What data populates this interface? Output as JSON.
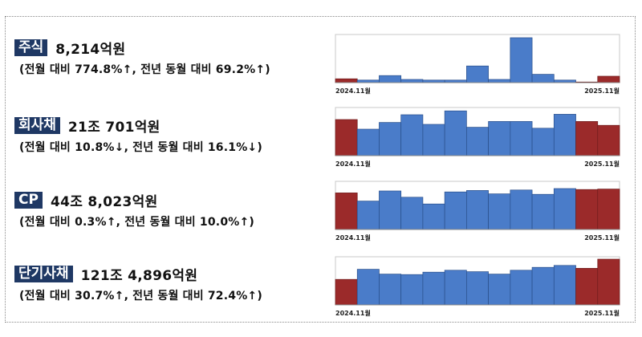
{
  "colors": {
    "badge_bg": "#1f3864",
    "bar_blue": "#4a7cc9",
    "bar_red": "#9b2a2a",
    "bar_stroke": "#2a4f8a",
    "axis": "#888888"
  },
  "rows": [
    {
      "name": "주식",
      "amount": "8,214억원",
      "change": "(전월 대비 774.8%↑, 전년 동월 대비 69.2%↑)"
    },
    {
      "name": "회사채",
      "amount": "21조 701억원",
      "change": "(전월 대비 10.8%↓, 전년 동월 대비 16.1%↓)"
    },
    {
      "name": "CP",
      "amount": "44조 8,023억원",
      "change": "(전월 대비 0.3%↑, 전년 동월 대비 10.0%↑)"
    },
    {
      "name": "단기사채",
      "amount": "121조 4,896억원",
      "change": "(전월 대비 30.7%↑, 전년 동월 대비 72.4%↑)"
    }
  ],
  "chart_data": [
    {
      "type": "bar",
      "x_start": "2024.11월",
      "x_end": "2025.11월",
      "values": [
        0.6,
        0.4,
        1.1,
        0.5,
        0.4,
        0.4,
        2.6,
        0.5,
        7.0,
        1.3,
        0.4,
        0.1,
        1.0
      ],
      "highlight": [
        0,
        11,
        12
      ],
      "ylim": [
        0,
        7.5
      ]
    },
    {
      "type": "bar",
      "x_start": "2024.11월",
      "x_end": "2025.11월",
      "values": [
        7.5,
        5.5,
        6.9,
        8.5,
        6.5,
        9.3,
        5.9,
        7.1,
        7.1,
        5.7,
        8.6,
        7.1,
        6.3
      ],
      "highlight": [
        0,
        11,
        12
      ],
      "ylim": [
        0,
        10
      ]
    },
    {
      "type": "bar",
      "x_start": "2024.11월",
      "x_end": "2025.11월",
      "values": [
        7.6,
        5.9,
        8.0,
        6.7,
        5.3,
        7.8,
        8.1,
        7.4,
        8.2,
        7.3,
        8.5,
        8.3,
        8.4
      ],
      "highlight": [
        0,
        11,
        12
      ],
      "ylim": [
        0,
        10
      ]
    },
    {
      "type": "bar",
      "x_start": "2024.11월",
      "x_end": "2025.11월",
      "values": [
        5.3,
        7.4,
        6.4,
        6.3,
        6.8,
        7.2,
        6.9,
        6.4,
        7.2,
        7.8,
        8.2,
        7.6,
        9.5
      ],
      "highlight": [
        0,
        11,
        12
      ],
      "ylim": [
        0,
        10
      ]
    }
  ]
}
